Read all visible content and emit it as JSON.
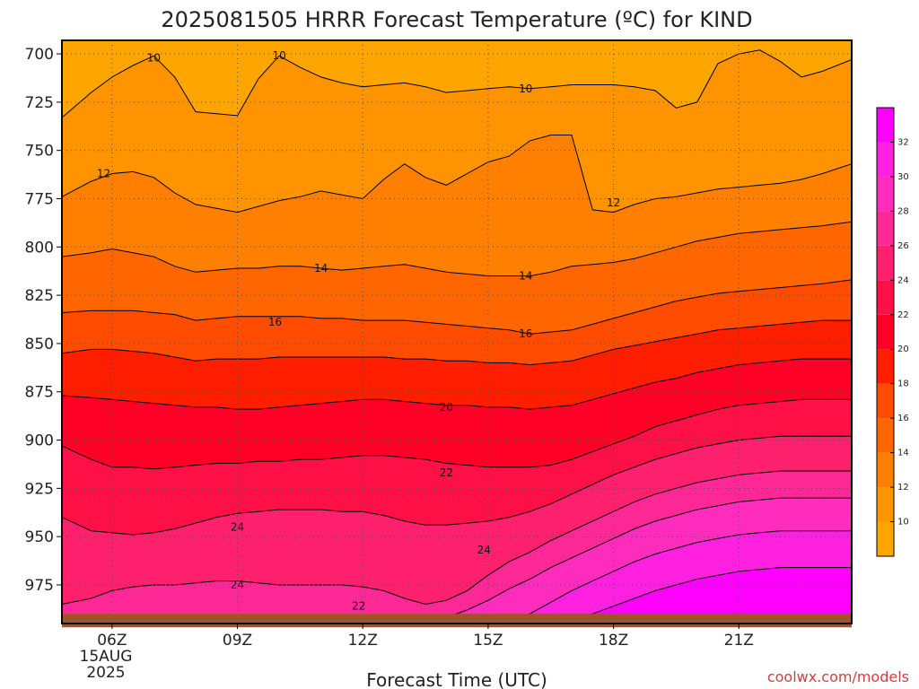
{
  "chart_data": {
    "type": "heatmap",
    "title": "2025081505 HRRR Forecast Temperature (ºC) for KIND",
    "xlabel": "Forecast Time (UTC)",
    "ylabel": "",
    "x_range_hours": [
      4.8,
      23.7
    ],
    "y_range_hpa": [
      693,
      995
    ],
    "x_ticks": [
      {
        "hour": 6,
        "label": "06Z"
      },
      {
        "hour": 9,
        "label": "09Z"
      },
      {
        "hour": 12,
        "label": "12Z"
      },
      {
        "hour": 15,
        "label": "15Z"
      },
      {
        "hour": 18,
        "label": "18Z"
      },
      {
        "hour": 21,
        "label": "21Z"
      }
    ],
    "x_date_label": [
      "15AUG",
      "2025"
    ],
    "y_ticks": [
      700,
      725,
      750,
      775,
      800,
      825,
      850,
      875,
      900,
      925,
      950,
      975
    ],
    "grid": true,
    "colorbar": {
      "levels": [
        8,
        10,
        12,
        14,
        16,
        18,
        20,
        22,
        24,
        26,
        28,
        30,
        32,
        34
      ],
      "labels": [
        10,
        12,
        14,
        16,
        18,
        20,
        22,
        24,
        26,
        28,
        30,
        32
      ],
      "colors": [
        "#ffa500",
        "#ff9400",
        "#ff8000",
        "#ff6600",
        "#ff4c00",
        "#ff1e00",
        "#ff0026",
        "#ff1046",
        "#ff206e",
        "#ff2896",
        "#ff2cbe",
        "#ff20e0",
        "#ff00ff"
      ]
    },
    "contour_labels": [
      {
        "value": "10",
        "hour": 7.0,
        "hpa": 702
      },
      {
        "value": "10",
        "hour": 10.0,
        "hpa": 701
      },
      {
        "value": "10",
        "hour": 15.9,
        "hpa": 718
      },
      {
        "value": "12",
        "hour": 5.8,
        "hpa": 762
      },
      {
        "value": "12",
        "hour": 18.0,
        "hpa": 777
      },
      {
        "value": "14",
        "hour": 11.0,
        "hpa": 811
      },
      {
        "value": "14",
        "hour": 15.9,
        "hpa": 815
      },
      {
        "value": "16",
        "hour": 9.9,
        "hpa": 839
      },
      {
        "value": "16",
        "hour": 15.9,
        "hpa": 845
      },
      {
        "value": "20",
        "hour": 14.0,
        "hpa": 883
      },
      {
        "value": "22",
        "hour": 14.0,
        "hpa": 917
      },
      {
        "value": "24",
        "hour": 9.0,
        "hpa": 945
      },
      {
        "value": "24",
        "hour": 14.9,
        "hpa": 957
      },
      {
        "value": "24",
        "hour": 9.0,
        "hpa": 975
      },
      {
        "value": "22",
        "hour": 11.9,
        "hpa": 986
      }
    ],
    "surface_pressure_hpa": 990,
    "ground_color": "#a0522d"
  },
  "credit": "coolwx.com/models"
}
